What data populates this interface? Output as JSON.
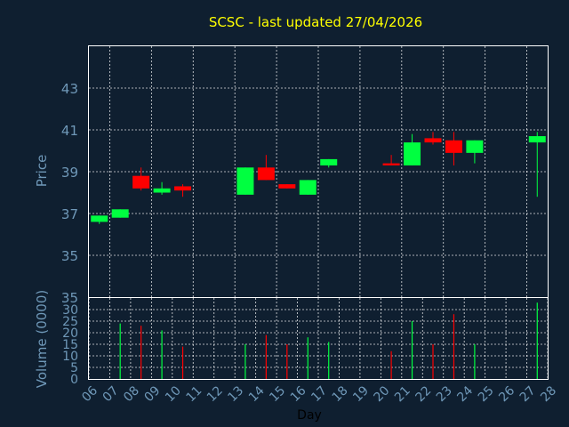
{
  "colors": {
    "background": "#0f1f30",
    "up": "#00ff40",
    "down": "#ff0000",
    "grid": "#ffffff",
    "title": "#ffff00",
    "axis_text": "#6f98b8"
  },
  "chart_data": [
    {
      "type": "candlestick",
      "title": "SCSC - last updated 27/04/2026",
      "ylabel": "Price",
      "ylim": [
        33,
        45
      ],
      "yticks": [
        35,
        37,
        39,
        41,
        43
      ],
      "grid": true,
      "candles": [
        {
          "day": 6.5,
          "open": 36.6,
          "high": 36.9,
          "low": 36.5,
          "close": 36.9
        },
        {
          "day": 7.5,
          "open": 36.8,
          "high": 37.2,
          "low": 36.8,
          "close": 37.2
        },
        {
          "day": 8.5,
          "open": 38.8,
          "high": 39.2,
          "low": 38.1,
          "close": 38.2
        },
        {
          "day": 9.5,
          "open": 38.0,
          "high": 38.5,
          "low": 37.9,
          "close": 38.2
        },
        {
          "day": 10.5,
          "open": 38.3,
          "high": 38.4,
          "low": 37.8,
          "close": 38.1
        },
        {
          "day": 13.5,
          "open": 37.9,
          "high": 39.2,
          "low": 37.9,
          "close": 39.2
        },
        {
          "day": 14.5,
          "open": 39.2,
          "high": 39.8,
          "low": 38.6,
          "close": 38.6
        },
        {
          "day": 15.5,
          "open": 38.4,
          "high": 38.4,
          "low": 38.2,
          "close": 38.2
        },
        {
          "day": 16.5,
          "open": 37.9,
          "high": 38.6,
          "low": 37.9,
          "close": 38.6
        },
        {
          "day": 17.5,
          "open": 39.3,
          "high": 39.6,
          "low": 39.2,
          "close": 39.6
        },
        {
          "day": 20.5,
          "open": 39.4,
          "high": 39.8,
          "low": 39.3,
          "close": 39.3
        },
        {
          "day": 21.5,
          "open": 39.3,
          "high": 40.8,
          "low": 39.3,
          "close": 40.4
        },
        {
          "day": 22.5,
          "open": 40.6,
          "high": 40.9,
          "low": 40.3,
          "close": 40.4
        },
        {
          "day": 23.5,
          "open": 40.5,
          "high": 40.9,
          "low": 39.3,
          "close": 39.9
        },
        {
          "day": 24.5,
          "open": 39.9,
          "high": 40.5,
          "low": 39.4,
          "close": 40.5
        },
        {
          "day": 27.5,
          "open": 40.4,
          "high": 40.9,
          "low": 37.8,
          "close": 40.7
        }
      ]
    },
    {
      "type": "bar",
      "ylabel": "Volume (0000)",
      "xlabel": "Day",
      "ylim": [
        0,
        35
      ],
      "yticks": [
        0,
        5,
        10,
        15,
        20,
        25,
        30,
        35
      ],
      "x_tick_labels": [
        "06",
        "07",
        "08",
        "09",
        "10",
        "11",
        "12",
        "13",
        "14",
        "15",
        "16",
        "17",
        "18",
        "19",
        "20",
        "21",
        "22",
        "23",
        "24",
        "25",
        "26",
        "27",
        "28"
      ],
      "bars": [
        {
          "day": 7.5,
          "value": 24,
          "direction": "up"
        },
        {
          "day": 8.5,
          "value": 23,
          "direction": "down"
        },
        {
          "day": 9.5,
          "value": 21,
          "direction": "up"
        },
        {
          "day": 10.5,
          "value": 14,
          "direction": "down"
        },
        {
          "day": 13.5,
          "value": 15,
          "direction": "up"
        },
        {
          "day": 14.5,
          "value": 19,
          "direction": "down"
        },
        {
          "day": 15.5,
          "value": 15,
          "direction": "down"
        },
        {
          "day": 16.5,
          "value": 18,
          "direction": "up"
        },
        {
          "day": 17.5,
          "value": 16,
          "direction": "up"
        },
        {
          "day": 20.5,
          "value": 12,
          "direction": "down"
        },
        {
          "day": 21.5,
          "value": 25,
          "direction": "up"
        },
        {
          "day": 22.5,
          "value": 15,
          "direction": "down"
        },
        {
          "day": 23.5,
          "value": 28,
          "direction": "down"
        },
        {
          "day": 24.5,
          "value": 15,
          "direction": "up"
        },
        {
          "day": 27.5,
          "value": 33,
          "direction": "up"
        }
      ]
    }
  ]
}
